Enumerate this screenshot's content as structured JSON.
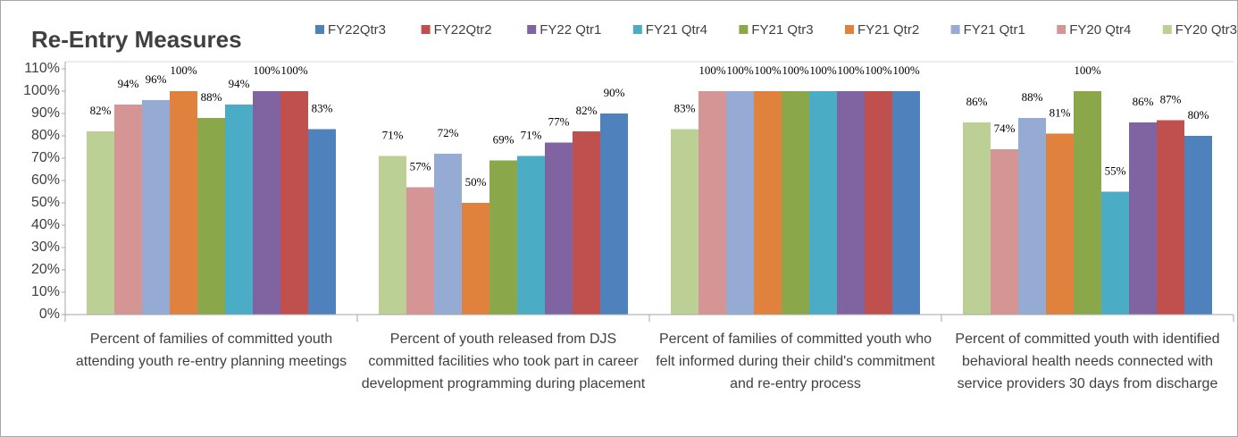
{
  "chart_data": {
    "type": "bar",
    "title": "Re-Entry Measures",
    "categories": [
      "Percent of families of committed youth attending youth re-entry planning meetings",
      "Percent of youth released from DJS committed facilities who took part in career development programming during placement",
      "Percent of families of committed youth who felt informed during their child's commitment and re-entry process",
      "Percent of committed youth with identified behavioral health needs connected with service providers 30 days from discharge"
    ],
    "series": [
      {
        "name": "FY22Qtr3",
        "color": "#4f81bd",
        "values": [
          83,
          90,
          100,
          80
        ],
        "value_labels": [
          "83%",
          "90%",
          "100%",
          "80%"
        ]
      },
      {
        "name": "FY22Qtr2",
        "color": "#c0504d",
        "values": [
          100,
          82,
          100,
          87
        ],
        "value_labels": [
          "100%",
          "82%",
          "100%",
          "87%"
        ]
      },
      {
        "name": "FY22 Qtr1",
        "color": "#8064a2",
        "values": [
          100,
          77,
          100,
          86
        ],
        "value_labels": [
          "100%",
          "77%",
          "100%",
          "86%"
        ]
      },
      {
        "name": "FY21 Qtr4",
        "color": "#4bacc6",
        "values": [
          94,
          71,
          100,
          55
        ],
        "value_labels": [
          "94%",
          "71%",
          "100%",
          "55%"
        ]
      },
      {
        "name": "FY21 Qtr3",
        "color": "#8aa84a",
        "values": [
          88,
          69,
          100,
          100
        ],
        "value_labels": [
          "88%",
          "69%",
          "100%",
          "100%"
        ]
      },
      {
        "name": "FY21 Qtr2",
        "color": "#e0823d",
        "values": [
          100,
          50,
          100,
          81
        ],
        "value_labels": [
          "100%",
          "50%",
          "100%",
          "81%"
        ]
      },
      {
        "name": "FY21 Qtr1",
        "color": "#95abd4",
        "values": [
          96,
          72,
          100,
          88
        ],
        "value_labels": [
          "96%",
          "72%",
          "100%",
          "88%"
        ]
      },
      {
        "name": "FY20 Qtr4",
        "color": "#d69595",
        "values": [
          94,
          57,
          100,
          74
        ],
        "value_labels": [
          "94%",
          "57%",
          "100%",
          "74%"
        ]
      },
      {
        "name": "FY20 Qtr3",
        "color": "#bcd096",
        "values": [
          82,
          71,
          83,
          86
        ],
        "value_labels": [
          "82%",
          "71%",
          "83%",
          "86%"
        ]
      }
    ],
    "ylim": [
      0,
      110
    ],
    "yticks": [
      {
        "value": 0,
        "label": "0%"
      },
      {
        "value": 10,
        "label": "10%"
      },
      {
        "value": 20,
        "label": "20%"
      },
      {
        "value": 30,
        "label": "30%"
      },
      {
        "value": 40,
        "label": "40%"
      },
      {
        "value": 50,
        "label": "50%"
      },
      {
        "value": 60,
        "label": "60%"
      },
      {
        "value": 70,
        "label": "70%"
      },
      {
        "value": 80,
        "label": "80%"
      },
      {
        "value": 90,
        "label": "90%"
      },
      {
        "value": 100,
        "label": "100%"
      },
      {
        "value": 110,
        "label": "110%"
      }
    ],
    "grid": false
  }
}
